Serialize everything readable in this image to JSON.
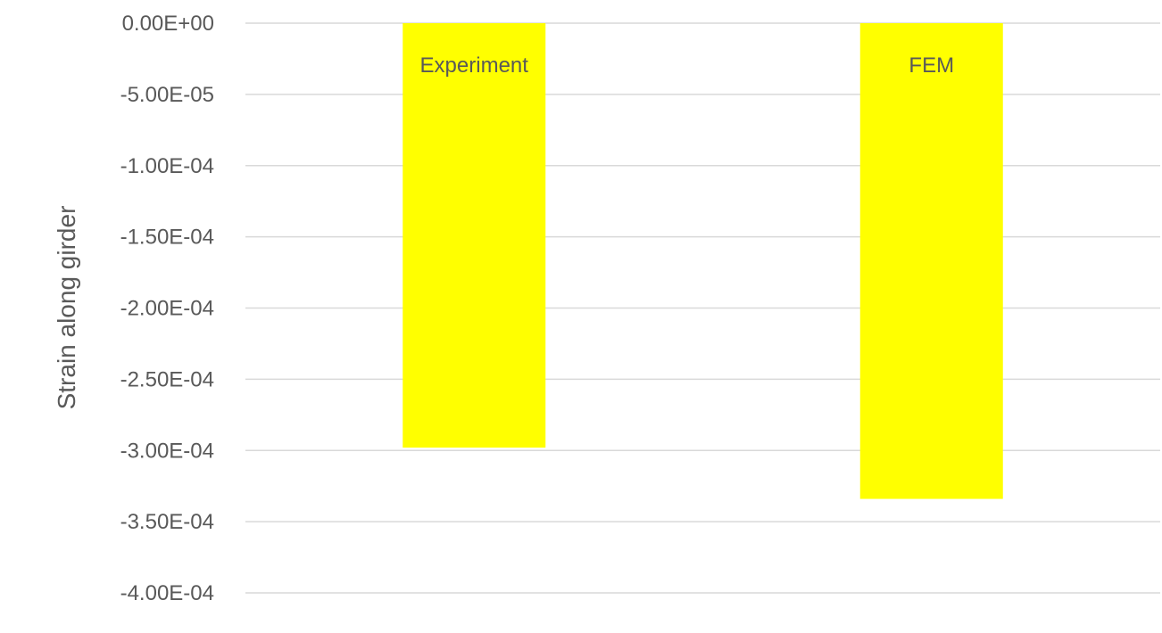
{
  "chart_data": {
    "type": "bar",
    "categories": [
      "Experiment",
      "FEM"
    ],
    "series": [
      {
        "values": [
          -0.000298,
          -0.000334
        ],
        "color": "#ffff00"
      }
    ],
    "data_labels": [
      "Experiment",
      "FEM"
    ],
    "ylabel": "Strain along girder",
    "xlabel": "",
    "ylim": [
      -0.0004,
      0
    ],
    "y_ticks": [
      0,
      -5e-05,
      -0.0001,
      -0.00015,
      -0.0002,
      -0.00025,
      -0.0003,
      -0.00035,
      -0.0004
    ],
    "y_tick_labels": [
      "0.00E+00",
      "-5.00E-05",
      "-1.00E-04",
      "-1.50E-04",
      "-2.00E-04",
      "-2.50E-04",
      "-3.00E-04",
      "-3.50E-04",
      "-4.00E-04"
    ],
    "grid": true,
    "legend": "none",
    "colors": {
      "bar": "#ffff00",
      "grid": "#d9d9d9",
      "text": "#595959"
    }
  }
}
